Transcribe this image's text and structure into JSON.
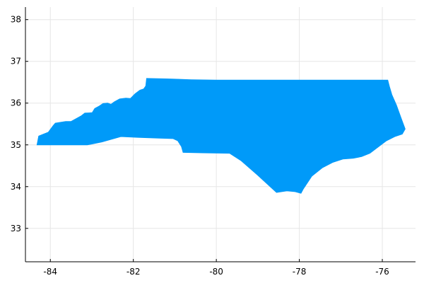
{
  "chart_data": {
    "type": "area",
    "title": "",
    "xlabel": "",
    "ylabel": "",
    "xlim": [
      -84.6,
      -75.2
    ],
    "ylim": [
      32.2,
      38.3
    ],
    "grid": true,
    "legend": "none",
    "fill_color": "#009af9",
    "x_ticks": [
      -84,
      -82,
      -80,
      -78,
      -76
    ],
    "x_tick_labels": [
      "-84",
      "-82",
      "-80",
      "-78",
      "-76"
    ],
    "y_ticks": [
      33,
      34,
      35,
      36,
      37,
      38
    ],
    "y_tick_labels": [
      "33",
      "34",
      "35",
      "36",
      "37",
      "38"
    ],
    "series": [
      {
        "outline": [
          [
            -84.32,
            35.0
          ],
          [
            -84.28,
            35.21
          ],
          [
            -84.18,
            35.25
          ],
          [
            -84.05,
            35.3
          ],
          [
            -83.93,
            35.46
          ],
          [
            -83.88,
            35.52
          ],
          [
            -83.63,
            35.56
          ],
          [
            -83.5,
            35.56
          ],
          [
            -83.26,
            35.69
          ],
          [
            -83.17,
            35.76
          ],
          [
            -82.99,
            35.77
          ],
          [
            -82.93,
            35.87
          ],
          [
            -82.82,
            35.93
          ],
          [
            -82.73,
            35.99
          ],
          [
            -82.62,
            36.0
          ],
          [
            -82.54,
            35.97
          ],
          [
            -82.46,
            36.03
          ],
          [
            -82.33,
            36.1
          ],
          [
            -82.18,
            36.12
          ],
          [
            -82.07,
            36.11
          ],
          [
            -81.96,
            36.22
          ],
          [
            -81.84,
            36.31
          ],
          [
            -81.75,
            36.34
          ],
          [
            -81.7,
            36.41
          ],
          [
            -81.68,
            36.59
          ],
          [
            -81.2,
            36.58
          ],
          [
            -80.6,
            36.56
          ],
          [
            -80.0,
            36.55
          ],
          [
            -79.5,
            36.55
          ],
          [
            -79.0,
            36.55
          ],
          [
            -78.5,
            36.55
          ],
          [
            -78.0,
            36.55
          ],
          [
            -77.5,
            36.55
          ],
          [
            -77.0,
            36.55
          ],
          [
            -76.5,
            36.55
          ],
          [
            -75.87,
            36.55
          ],
          [
            -75.83,
            36.4
          ],
          [
            -75.77,
            36.2
          ],
          [
            -75.66,
            35.95
          ],
          [
            -75.55,
            35.65
          ],
          [
            -75.45,
            35.38
          ],
          [
            -75.52,
            35.26
          ],
          [
            -75.7,
            35.2
          ],
          [
            -75.9,
            35.1
          ],
          [
            -76.1,
            34.95
          ],
          [
            -76.3,
            34.8
          ],
          [
            -76.5,
            34.72
          ],
          [
            -76.7,
            34.68
          ],
          [
            -76.95,
            34.66
          ],
          [
            -77.2,
            34.58
          ],
          [
            -77.45,
            34.45
          ],
          [
            -77.7,
            34.25
          ],
          [
            -77.9,
            33.95
          ],
          [
            -77.96,
            33.84
          ],
          [
            -78.1,
            33.88
          ],
          [
            -78.3,
            33.9
          ],
          [
            -78.55,
            33.86
          ],
          [
            -79.0,
            34.27
          ],
          [
            -79.4,
            34.62
          ],
          [
            -79.68,
            34.8
          ],
          [
            -80.32,
            34.81
          ],
          [
            -80.8,
            34.82
          ],
          [
            -80.84,
            34.96
          ],
          [
            -80.93,
            35.1
          ],
          [
            -81.04,
            35.15
          ],
          [
            -81.37,
            35.16
          ],
          [
            -81.9,
            35.18
          ],
          [
            -82.3,
            35.2
          ],
          [
            -82.76,
            35.07
          ],
          [
            -83.11,
            35.0
          ],
          [
            -84.32,
            35.0
          ]
        ]
      }
    ]
  }
}
